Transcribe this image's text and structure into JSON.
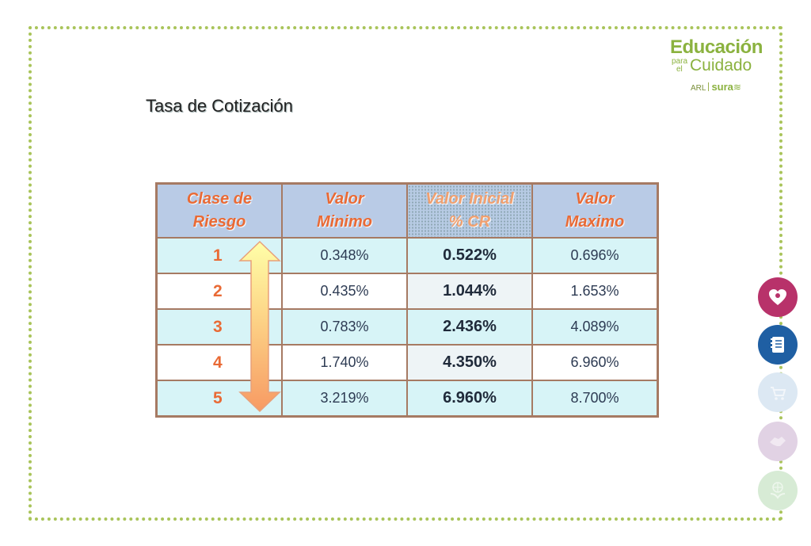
{
  "logo": {
    "line1": "Educación",
    "para": "para",
    "el": "el",
    "cuidado": "Cuidado",
    "arl": "ARL",
    "sura": "sura"
  },
  "title": "Tasa de Cotización",
  "table": {
    "headers": {
      "clase": [
        "Clase de",
        "Riesgo"
      ],
      "minimo": [
        "Valor",
        "Minimo"
      ],
      "inicial": [
        "Valor Inicial",
        "% CR"
      ],
      "maximo": [
        "Valor",
        "Maximo"
      ]
    },
    "rows": [
      {
        "clase": "1",
        "minimo": "0.348%",
        "inicial": "0.522%",
        "maximo": "0.696%"
      },
      {
        "clase": "2",
        "minimo": "0.435%",
        "inicial": "1.044%",
        "maximo": "1.653%"
      },
      {
        "clase": "3",
        "minimo": "0.783%",
        "inicial": "2.436%",
        "maximo": "4.089%"
      },
      {
        "clase": "4",
        "minimo": "1.740%",
        "inicial": "4.350%",
        "maximo": "6.960%"
      },
      {
        "clase": "5",
        "minimo": "3.219%",
        "inicial": "6.960%",
        "maximo": "8.700%"
      }
    ]
  },
  "side_icons": [
    {
      "name": "heart-icon",
      "color": "#b8326a"
    },
    {
      "name": "notebook-icon",
      "color": "#1f5fa3"
    },
    {
      "name": "cart-icon",
      "color": "#dce8f3"
    },
    {
      "name": "handshake-icon",
      "color": "#e1d2e4"
    },
    {
      "name": "globe-plant-icon",
      "color": "#d7ebd5"
    }
  ]
}
